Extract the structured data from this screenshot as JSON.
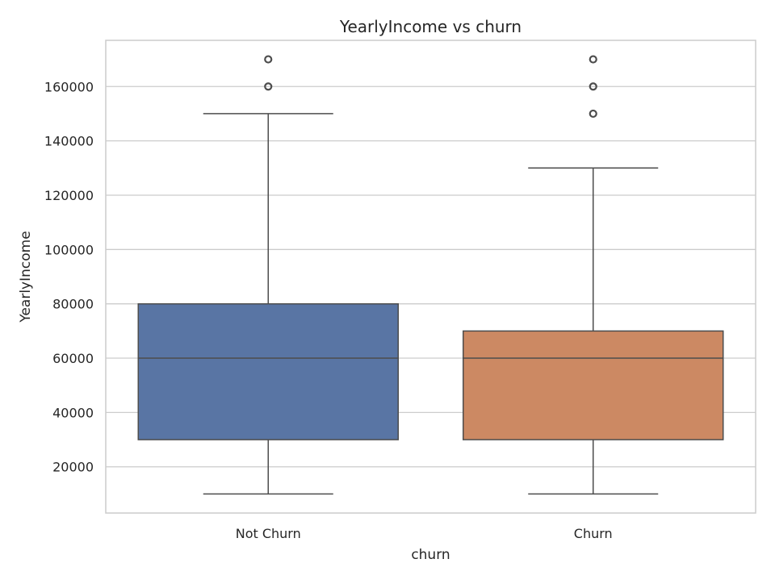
{
  "chart_data": {
    "type": "box",
    "title": "YearlyIncome vs churn",
    "xlabel": "churn",
    "ylabel": "YearlyIncome",
    "ylim": [
      3000,
      177000
    ],
    "yticks": [
      20000,
      40000,
      60000,
      80000,
      100000,
      120000,
      140000,
      160000
    ],
    "ytick_labels": [
      "20000",
      "40000",
      "60000",
      "80000",
      "100000",
      "120000",
      "140000",
      "160000"
    ],
    "grid": true,
    "categories": [
      "Not Churn",
      "Churn"
    ],
    "boxes": [
      {
        "category": "Not Churn",
        "whisker_low": 10000,
        "q1": 30000,
        "median": 60000,
        "q3": 80000,
        "whisker_high": 150000,
        "outliers": [
          160000,
          170000
        ],
        "color": "#5975a4"
      },
      {
        "category": "Churn",
        "whisker_low": 10000,
        "q1": 30000,
        "median": 60000,
        "q3": 70000,
        "whisker_high": 130000,
        "outliers": [
          150000,
          160000,
          170000
        ],
        "color": "#cc8963"
      }
    ],
    "colors": {
      "grid": "#cccccc",
      "frame": "#cccccc",
      "lines": "#4d4d4d",
      "text": "#262626"
    }
  }
}
